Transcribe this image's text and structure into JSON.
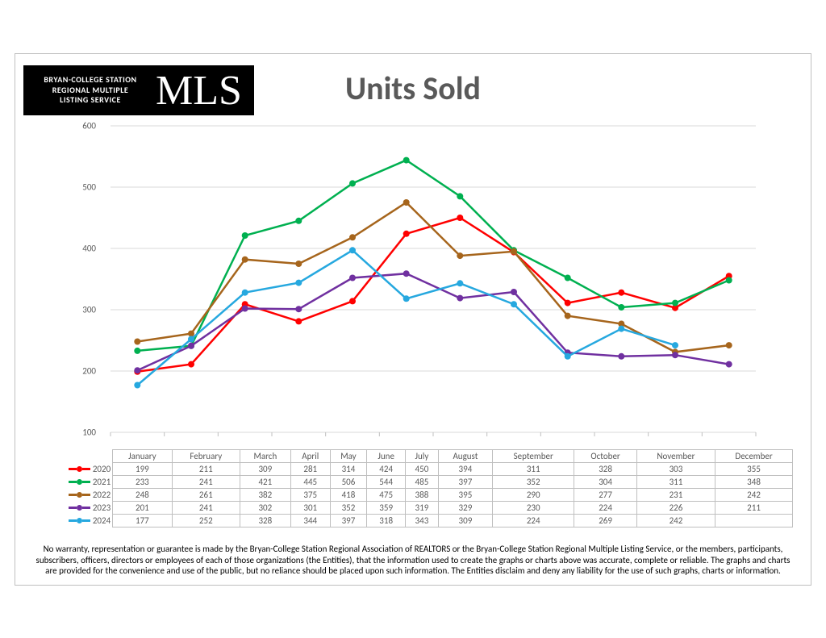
{
  "logo": {
    "line1": "BRYAN-COLLEGE STATION",
    "line2": "REGIONAL MULTIPLE",
    "line3": "LISTING SERVICE",
    "brand": "MLS"
  },
  "title": "Units Sold",
  "chart": {
    "type": "line",
    "categories": [
      "January",
      "February",
      "March",
      "April",
      "May",
      "June",
      "July",
      "August",
      "September",
      "October",
      "November",
      "December"
    ],
    "ymin": 100,
    "ymax": 600,
    "ytick_step": 100,
    "grid_color": "#d9d9d9",
    "axis_color": "#bfbfbf",
    "label_color": "#595959",
    "label_fontsize": 11,
    "line_width": 2.5,
    "marker_radius": 4,
    "series": [
      {
        "name": "2020",
        "color": "#ff0000",
        "data": [
          199,
          211,
          309,
          281,
          314,
          424,
          450,
          394,
          311,
          328,
          303,
          355
        ]
      },
      {
        "name": "2021",
        "color": "#00b050",
        "data": [
          233,
          241,
          421,
          445,
          506,
          544,
          485,
          397,
          352,
          304,
          311,
          348
        ]
      },
      {
        "name": "2022",
        "color": "#a6651c",
        "data": [
          248,
          261,
          382,
          375,
          418,
          475,
          388,
          395,
          290,
          277,
          231,
          242
        ]
      },
      {
        "name": "2023",
        "color": "#7030a0",
        "data": [
          201,
          241,
          302,
          301,
          352,
          359,
          319,
          329,
          230,
          224,
          226,
          211
        ]
      },
      {
        "name": "2024",
        "color": "#26a8df",
        "data": [
          177,
          252,
          328,
          344,
          397,
          318,
          343,
          309,
          224,
          269,
          242,
          null
        ]
      }
    ]
  },
  "disclaimer": "No warranty, representation or guarantee is made by the Bryan-College Station Regional Association of REALTORS or the Bryan-College Station Regional Multiple Listing Service, or the members, participants, subscribers, officers, directors or employees of each of those organizations (the Entities), that the information used to create the graphs or charts above was accurate, complete or reliable.  The graphs and charts are provided for the convenience and use of the public, but no reliance should be placed upon such information.  The Entities disclaim and deny any liability for the use of such graphs, charts or information."
}
